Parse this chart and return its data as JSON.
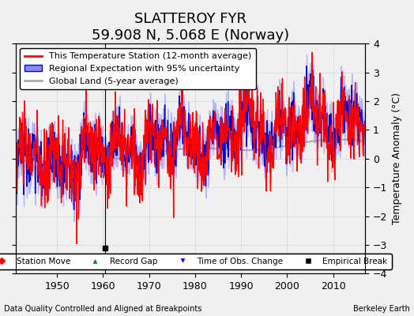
{
  "title": "SLATTEROY FYR",
  "subtitle": "59.908 N, 5.068 E (Norway)",
  "xlabel_left": "Data Quality Controlled and Aligned at Breakpoints",
  "xlabel_right": "Berkeley Earth",
  "ylabel": "Temperature Anomaly (°C)",
  "xlim": [
    1941,
    2017
  ],
  "ylim": [
    -4,
    4
  ],
  "yticks": [
    -4,
    -3,
    -2,
    -1,
    0,
    1,
    2,
    3,
    4
  ],
  "xticks": [
    1950,
    1960,
    1970,
    1980,
    1990,
    2000,
    2010
  ],
  "station_color": "#FF0000",
  "regional_color": "#0000CC",
  "regional_fill": "#8888FF",
  "global_color": "#AAAAAA",
  "background_color": "#F0F0F0",
  "empirical_break_x": 1960.5,
  "empirical_break_y": -3.1,
  "title_fontsize": 13,
  "subtitle_fontsize": 10,
  "legend_fontsize": 8,
  "tick_fontsize": 9
}
